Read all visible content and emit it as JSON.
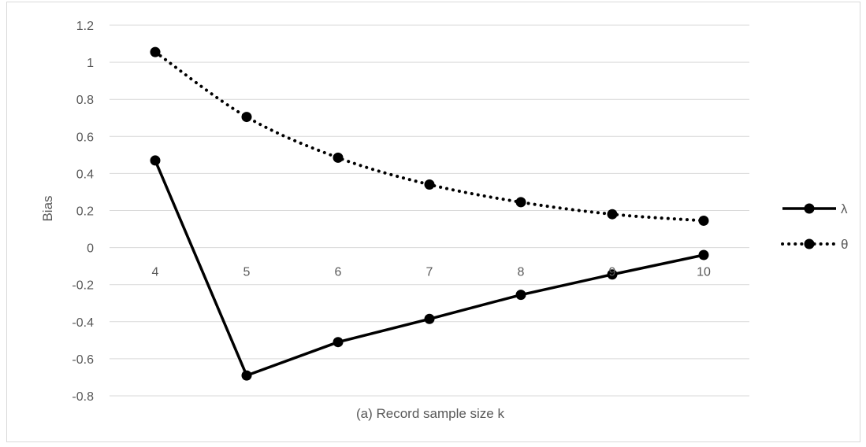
{
  "chart_data": {
    "type": "line",
    "x": [
      4,
      5,
      6,
      7,
      8,
      9,
      10
    ],
    "xlabel": "(a) Record sample size k",
    "ylabel": "Bias",
    "ylim": [
      -0.8,
      1.2
    ],
    "ytick_step": 0.2,
    "yticks": [
      "1.2",
      "1",
      "0.8",
      "0.6",
      "0.4",
      "0.2",
      "0",
      "-0.2",
      "-0.4",
      "-0.6",
      "-0.8"
    ],
    "xticks": [
      "4",
      "5",
      "6",
      "7",
      "8",
      "9",
      "10"
    ],
    "grid": true,
    "legend_position": "right",
    "series": [
      {
        "name": "λ",
        "style": "solid",
        "color": "#000000",
        "values": [
          0.47,
          -0.69,
          -0.51,
          -0.385,
          -0.255,
          -0.145,
          -0.04
        ]
      },
      {
        "name": "θ",
        "style": "dotted",
        "color": "#000000",
        "values": [
          1.055,
          0.705,
          0.485,
          0.34,
          0.245,
          0.18,
          0.145
        ]
      }
    ]
  }
}
